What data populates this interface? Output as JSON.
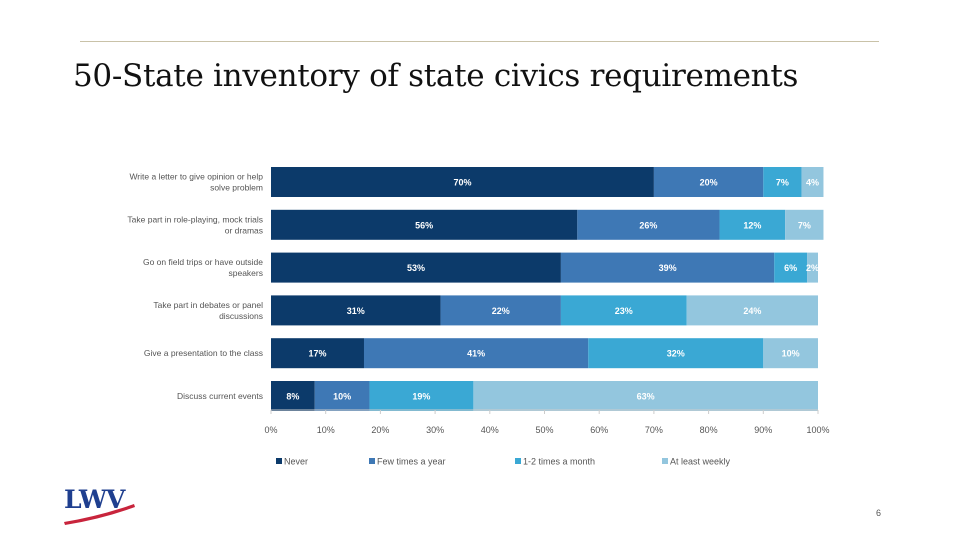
{
  "slide": {
    "title": "50-State inventory of state civics requirements",
    "page_number": "6",
    "logo_text": "LWV"
  },
  "colors": {
    "never": "#0c3a6a",
    "few": "#3e78b5",
    "month": "#3aa8d4",
    "weekly": "#93c6de",
    "rule": "#c9c2a8",
    "logo_blue": "#1f3f8f",
    "logo_red": "#c8243c"
  },
  "chart_data": {
    "type": "bar",
    "orientation": "horizontal",
    "stacked": true,
    "categories": [
      [
        "Write a letter to give opinion or help",
        "solve problem"
      ],
      [
        "Take part in role-playing, mock trials",
        "or dramas"
      ],
      [
        "Go on field trips or have outside",
        "speakers"
      ],
      [
        "Take part in debates or panel",
        "discussions"
      ],
      [
        "Give a presentation to the class"
      ],
      [
        "Discuss current events"
      ]
    ],
    "series": [
      {
        "name": "Never",
        "color_key": "never",
        "values": [
          70,
          56,
          53,
          31,
          17,
          8
        ]
      },
      {
        "name": "Few times a year",
        "color_key": "few",
        "values": [
          20,
          26,
          39,
          22,
          41,
          10
        ]
      },
      {
        "name": "1-2 times a month",
        "color_key": "month",
        "values": [
          7,
          12,
          6,
          23,
          32,
          19
        ]
      },
      {
        "name": "At least weekly",
        "color_key": "weekly",
        "values": [
          4,
          7,
          2,
          24,
          10,
          63
        ]
      }
    ],
    "xlim": [
      0,
      100
    ],
    "xticks": [
      "0%",
      "10%",
      "20%",
      "30%",
      "40%",
      "50%",
      "60%",
      "70%",
      "80%",
      "90%",
      "100%"
    ],
    "legend_position": "bottom",
    "grid": false
  }
}
